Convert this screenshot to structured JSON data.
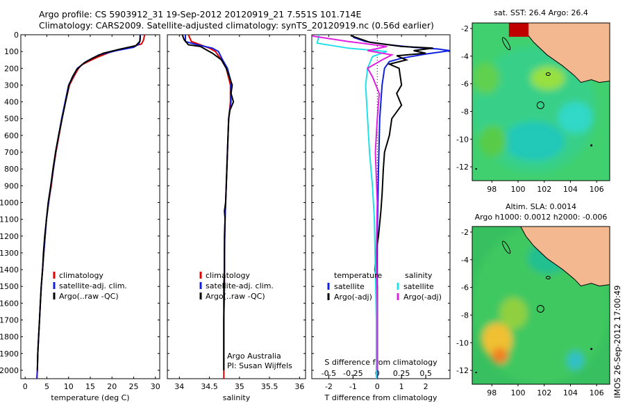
{
  "header": {
    "line1": "Argo profile: CS 5903912_31 19-Sep-2012 20120919_21 7.551S 101.714E",
    "line2": "Climatology: CARS2009. Satellite-adjusted climatology: synTS_20120919.nc (0.56d earlier)"
  },
  "colors": {
    "climatology": "#e00000",
    "satellite": "#1020e0",
    "argo": "#000000",
    "argo_adj_s": "#e020e0",
    "satellite_s": "#20e0e8",
    "land": "#f4b890"
  },
  "chart_data": [
    {
      "type": "line",
      "id": "temperature",
      "xlabel": "temperature (deg C)",
      "xlim": [
        -1,
        31
      ],
      "ylim": [
        2050,
        0
      ],
      "xticks": [
        0,
        5,
        10,
        15,
        20,
        25,
        30
      ],
      "yticks": [
        0,
        100,
        200,
        300,
        400,
        500,
        600,
        700,
        800,
        900,
        1000,
        1100,
        1200,
        1300,
        1400,
        1500,
        1600,
        1700,
        1800,
        1900,
        2000
      ],
      "legend": [
        "climatology",
        "satellite-adj. clim.",
        "Argo(..raw -QC)"
      ],
      "series": [
        {
          "name": "climatology",
          "color": "#e00000",
          "points": [
            [
              27.5,
              0
            ],
            [
              27.3,
              30
            ],
            [
              26.8,
              55
            ],
            [
              24,
              75
            ],
            [
              20,
              100
            ],
            [
              17,
              130
            ],
            [
              14.5,
              160
            ],
            [
              13,
              180
            ],
            [
              12.3,
              200
            ],
            [
              11.2,
              250
            ],
            [
              10.2,
              300
            ],
            [
              9.3,
              400
            ],
            [
              8.5,
              500
            ],
            [
              7.8,
              600
            ],
            [
              7.1,
              700
            ],
            [
              6.5,
              800
            ],
            [
              6.0,
              900
            ],
            [
              5.4,
              1000
            ],
            [
              4.9,
              1100
            ],
            [
              4.6,
              1200
            ],
            [
              4.3,
              1300
            ],
            [
              4.0,
              1400
            ],
            [
              3.7,
              1500
            ],
            [
              3.5,
              1600
            ],
            [
              3.3,
              1700
            ],
            [
              3.1,
              1800
            ],
            [
              2.9,
              1900
            ],
            [
              2.8,
              2000
            ],
            [
              2.7,
              2050
            ]
          ]
        },
        {
          "name": "satellite-adj. clim.",
          "color": "#1020e0",
          "points": [
            [
              26.5,
              0
            ],
            [
              26.5,
              30
            ],
            [
              26.2,
              55
            ],
            [
              25,
              75
            ],
            [
              21,
              95
            ],
            [
              17,
              120
            ],
            [
              14,
              160
            ],
            [
              12.8,
              185
            ],
            [
              12,
              200
            ],
            [
              11,
              250
            ],
            [
              10,
              300
            ],
            [
              9.2,
              400
            ],
            [
              8.4,
              500
            ],
            [
              7.7,
              600
            ],
            [
              7.0,
              700
            ],
            [
              6.5,
              800
            ],
            [
              5.9,
              900
            ],
            [
              5.4,
              1000
            ],
            [
              4.9,
              1100
            ],
            [
              4.6,
              1200
            ],
            [
              4.3,
              1300
            ],
            [
              4.0,
              1400
            ],
            [
              3.7,
              1500
            ],
            [
              3.5,
              1600
            ],
            [
              3.3,
              1700
            ],
            [
              3.1,
              1800
            ],
            [
              2.9,
              1900
            ],
            [
              2.8,
              2000
            ],
            [
              2.7,
              2050
            ]
          ]
        },
        {
          "name": "Argo(..raw -QC)",
          "color": "#000000",
          "points": [
            [
              26.5,
              5
            ],
            [
              26.4,
              40
            ],
            [
              25.5,
              65
            ],
            [
              22,
              85
            ],
            [
              18,
              110
            ],
            [
              15.5,
              140
            ],
            [
              13.5,
              170
            ],
            [
              12.6,
              190
            ],
            [
              11.8,
              210
            ],
            [
              10.9,
              250
            ],
            [
              10.1,
              300
            ],
            [
              9.3,
              400
            ],
            [
              8.5,
              500
            ],
            [
              7.7,
              600
            ],
            [
              7.0,
              700
            ],
            [
              6.4,
              800
            ],
            [
              5.9,
              900
            ],
            [
              5.3,
              1000
            ],
            [
              4.9,
              1100
            ],
            [
              4.5,
              1200
            ],
            [
              4.2,
              1300
            ],
            [
              4.0,
              1400
            ],
            [
              3.7,
              1500
            ],
            [
              3.5,
              1600
            ],
            [
              3.3,
              1700
            ],
            [
              3.1,
              1800
            ],
            [
              2.9,
              1900
            ],
            [
              2.8,
              2000
            ]
          ]
        }
      ]
    },
    {
      "type": "line",
      "id": "salinity",
      "xlabel": "salinity",
      "xlim": [
        33.8,
        36.1
      ],
      "ylim": [
        2050,
        0
      ],
      "xticks": [
        34,
        34.5,
        35,
        35.5,
        36
      ],
      "xticklabels": [
        "34",
        "34.5",
        "35",
        "35.5",
        "36"
      ],
      "legend": [
        "climatology",
        "satellite-adj. clim.",
        "Argo(..raw -QC)"
      ],
      "annotation": [
        "Argo Australia",
        "PI: Susan Wijffels"
      ],
      "series": [
        {
          "name": "climatology",
          "color": "#e00000",
          "points": [
            [
              34.15,
              0
            ],
            [
              34.2,
              40
            ],
            [
              34.35,
              60
            ],
            [
              34.5,
              80
            ],
            [
              34.6,
              100
            ],
            [
              34.7,
              150
            ],
            [
              34.78,
              200
            ],
            [
              34.85,
              300
            ],
            [
              34.85,
              400
            ],
            [
              34.82,
              500
            ],
            [
              34.8,
              700
            ],
            [
              34.78,
              900
            ],
            [
              34.76,
              1100
            ],
            [
              34.75,
              1300
            ],
            [
              34.75,
              1500
            ],
            [
              34.74,
              1700
            ],
            [
              34.74,
              1900
            ],
            [
              34.74,
              2050
            ]
          ]
        },
        {
          "name": "satellite-adj. clim.",
          "color": "#1020e0",
          "points": [
            [
              34.1,
              0
            ],
            [
              34.1,
              40
            ],
            [
              34.3,
              60
            ],
            [
              34.55,
              80
            ],
            [
              34.65,
              100
            ],
            [
              34.72,
              150
            ],
            [
              34.8,
              200
            ],
            [
              34.86,
              280
            ],
            [
              34.86,
              400
            ],
            [
              34.82,
              500
            ],
            [
              34.8,
              700
            ],
            [
              34.78,
              900
            ],
            [
              34.76,
              1100
            ],
            [
              34.75,
              1300
            ],
            [
              34.75,
              1500
            ],
            [
              34.74,
              1700
            ],
            [
              34.74,
              1900
            ],
            [
              34.74,
              2000
            ]
          ]
        },
        {
          "name": "Argo(..raw -QC)",
          "color": "#000000",
          "points": [
            [
              34.05,
              0
            ],
            [
              34.08,
              30
            ],
            [
              34.15,
              60
            ],
            [
              34.35,
              70
            ],
            [
              34.45,
              90
            ],
            [
              34.55,
              110
            ],
            [
              34.7,
              150
            ],
            [
              34.78,
              200
            ],
            [
              34.83,
              250
            ],
            [
              34.88,
              300
            ],
            [
              34.86,
              350
            ],
            [
              34.9,
              400
            ],
            [
              34.84,
              450
            ],
            [
              34.82,
              500
            ],
            [
              34.81,
              600
            ],
            [
              34.8,
              700
            ],
            [
              34.79,
              800
            ],
            [
              34.78,
              900
            ],
            [
              34.77,
              1000
            ],
            [
              34.75,
              1050
            ],
            [
              34.76,
              1100
            ],
            [
              34.75,
              1200
            ],
            [
              34.75,
              1300
            ],
            [
              34.75,
              1400
            ],
            [
              34.74,
              1500
            ],
            [
              34.74,
              1600
            ],
            [
              34.74,
              1700
            ],
            [
              34.74,
              1800
            ],
            [
              34.74,
              1900
            ],
            [
              34.74,
              2000
            ]
          ]
        }
      ]
    },
    {
      "type": "line",
      "id": "difference",
      "xlabel": "T difference from climatology",
      "xlabel_top": "S difference from climatology",
      "xlim": [
        -2.7,
        3.0
      ],
      "ylim": [
        2050,
        0
      ],
      "xticks": [
        -2,
        -1,
        0,
        1,
        2
      ],
      "xticks_s": [
        -0.5,
        -0.25,
        0,
        0.25,
        0.5
      ],
      "xticklabels_s": [
        "-0.5",
        "-0.25",
        "0",
        "0.25",
        "0.5"
      ],
      "legend_headers": [
        "temperature",
        "salinity"
      ],
      "legend": [
        "satellite",
        "Argo(-adj)",
        "satellite",
        "Argo(-adj)"
      ],
      "series": [
        {
          "name": "satellite",
          "group": "temperature",
          "color": "#1020e0",
          "points": [
            [
              -1,
              15
            ],
            [
              -0.5,
              40
            ],
            [
              0.5,
              60
            ],
            [
              1.5,
              75
            ],
            [
              2.5,
              85
            ],
            [
              3.0,
              95
            ],
            [
              2.0,
              115
            ],
            [
              1.0,
              140
            ],
            [
              0.5,
              160
            ],
            [
              0.3,
              200
            ],
            [
              0.2,
              300
            ],
            [
              0.1,
              500
            ],
            [
              0.05,
              800
            ],
            [
              0.0,
              1200
            ],
            [
              0.0,
              1600
            ],
            [
              0.0,
              2050
            ]
          ]
        },
        {
          "name": "Argo(-adj)",
          "group": "temperature",
          "color": "#000000",
          "points": [
            [
              -1.1,
              5
            ],
            [
              -0.3,
              45
            ],
            [
              1.0,
              70
            ],
            [
              2.3,
              80
            ],
            [
              1.5,
              95
            ],
            [
              2.0,
              110
            ],
            [
              0.8,
              125
            ],
            [
              1.2,
              150
            ],
            [
              0.5,
              175
            ],
            [
              0.9,
              200
            ],
            [
              1.0,
              300
            ],
            [
              0.8,
              350
            ],
            [
              1.0,
              420
            ],
            [
              0.6,
              500
            ],
            [
              0.5,
              600
            ],
            [
              0.3,
              700
            ],
            [
              0.25,
              800
            ],
            [
              0.2,
              950
            ],
            [
              0.15,
              1050
            ],
            [
              0.05,
              1200
            ],
            [
              -0.05,
              1300
            ],
            [
              -0.1,
              1400
            ],
            [
              0.0,
              1500
            ],
            [
              0.0,
              2000
            ]
          ]
        },
        {
          "name": "satellite",
          "group": "salinity",
          "color": "#20e0e8",
          "points": [
            [
              -0.6,
              0
            ],
            [
              -0.62,
              50
            ],
            [
              -0.3,
              80
            ],
            [
              0.1,
              100
            ],
            [
              -0.05,
              130
            ],
            [
              -0.1,
              200
            ],
            [
              -0.12,
              300
            ],
            [
              -0.1,
              500
            ],
            [
              -0.08,
              700
            ],
            [
              -0.05,
              900
            ],
            [
              -0.03,
              1100
            ],
            [
              -0.02,
              1400
            ],
            [
              -0.01,
              1700
            ],
            [
              -0.01,
              2050
            ]
          ]
        },
        {
          "name": "Argo(-adj)",
          "group": "salinity",
          "color": "#e020e0",
          "points": [
            [
              -0.7,
              5
            ],
            [
              -0.3,
              40
            ],
            [
              0.1,
              70
            ],
            [
              -0.1,
              95
            ],
            [
              0.15,
              120
            ],
            [
              0.05,
              150
            ],
            [
              -0.1,
              200
            ],
            [
              -0.05,
              250
            ],
            [
              0.02,
              350
            ],
            [
              0.0,
              500
            ],
            [
              -0.02,
              700
            ],
            [
              0.0,
              1000
            ],
            [
              -0.01,
              1300
            ],
            [
              0.0,
              1600
            ],
            [
              0.0,
              2000
            ]
          ]
        }
      ]
    }
  ],
  "maps": [
    {
      "title": "sat. SST: 26.4  Argo: 26.4",
      "title2": "",
      "xlim": [
        96.5,
        107
      ],
      "ylim": [
        -13,
        -1.6
      ],
      "xticks": [
        98,
        100,
        102,
        104,
        106
      ],
      "yticks": [
        -2,
        -4,
        -6,
        -8,
        -10,
        -12
      ],
      "float_lon": 101.714,
      "float_lat": -7.551
    },
    {
      "title": "Altim. SLA: 0.0014",
      "title2": "Argo h1000: 0.0012 h2000: -0.006",
      "xlim": [
        96.5,
        107
      ],
      "ylim": [
        -13,
        -1.6
      ],
      "xticks": [
        98,
        100,
        102,
        104,
        106
      ],
      "yticks": [
        -2,
        -4,
        -6,
        -8,
        -10,
        -12
      ],
      "float_lon": 101.714,
      "float_lat": -7.551
    }
  ],
  "footer": {
    "stamp": "IMOS 26-Sep-2012 17:00:49"
  }
}
